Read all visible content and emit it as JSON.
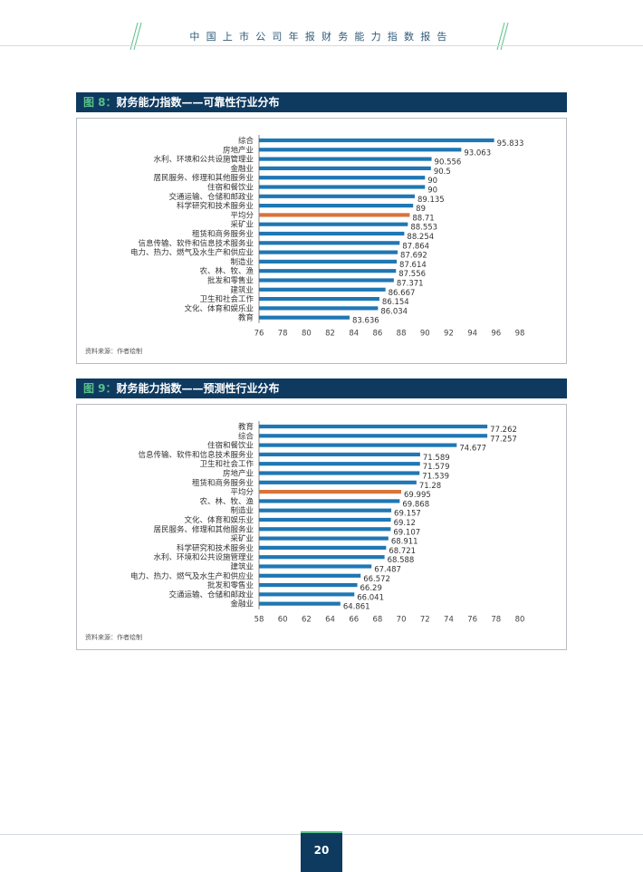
{
  "header": {
    "title": "中国上市公司年报财务能力指数报告"
  },
  "page_number": "20",
  "colors": {
    "bar": "#1f77b4",
    "highlight": "#d9733b",
    "title_bg": "#0e3a60",
    "accent": "#58c18a"
  },
  "figures": [
    {
      "label": "图 8：",
      "title": "财务能力指数——可靠性行业分布",
      "source": "资料来源：作者绘制"
    },
    {
      "label": "图 9：",
      "title": "财务能力指数——预测性行业分布",
      "source": "资料来源：作者绘制"
    }
  ],
  "chart_data": [
    {
      "type": "bar",
      "orientation": "horizontal",
      "title": "财务能力指数——可靠性行业分布",
      "xlim": [
        76,
        98
      ],
      "ticks": [
        76,
        78,
        80,
        82,
        84,
        86,
        88,
        90,
        92,
        94,
        96,
        98
      ],
      "highlight": "平均分",
      "categories": [
        "综合",
        "房地产业",
        "水利、环境和公共设施管理业",
        "金融业",
        "居民服务、修理和其他服务业",
        "住宿和餐饮业",
        "交通运输、仓储和邮政业",
        "科学研究和技术服务业",
        "平均分",
        "采矿业",
        "租赁和商务服务业",
        "信息传输、软件和信息技术服务业",
        "电力、热力、燃气及水生产和供应业",
        "制造业",
        "农、林、牧、渔",
        "批发和零售业",
        "建筑业",
        "卫生和社会工作",
        "文化、体育和娱乐业",
        "教育"
      ],
      "values": [
        95.833,
        93.063,
        90.556,
        90.5,
        90,
        90,
        89.135,
        89,
        88.71,
        88.553,
        88.254,
        87.864,
        87.692,
        87.614,
        87.556,
        87.371,
        86.667,
        86.154,
        86.034,
        83.636
      ],
      "value_labels": [
        "95.833",
        "93.063",
        "90.556",
        "90.5",
        "90",
        "90",
        "89.135",
        "89",
        "88.71",
        "88.553",
        "88.254",
        "87.864",
        "87.692",
        "87.614",
        "87.556",
        "87.371",
        "86.667",
        "86.154",
        "86.034",
        "83.636"
      ]
    },
    {
      "type": "bar",
      "orientation": "horizontal",
      "title": "财务能力指数——预测性行业分布",
      "xlim": [
        58,
        80
      ],
      "ticks": [
        58,
        60,
        62,
        64,
        66,
        68,
        70,
        72,
        74,
        76,
        78,
        80
      ],
      "highlight": "平均分",
      "categories": [
        "教育",
        "综合",
        "住宿和餐饮业",
        "信息传输、软件和信息技术服务业",
        "卫生和社会工作",
        "房地产业",
        "租赁和商务服务业",
        "平均分",
        "农、林、牧、渔",
        "制造业",
        "文化、体育和娱乐业",
        "居民服务、修理和其他服务业",
        "采矿业",
        "科学研究和技术服务业",
        "水利、环境和公共设施管理业",
        "建筑业",
        "电力、热力、燃气及水生产和供应业",
        "批发和零售业",
        "交通运输、仓储和邮政业",
        "金融业"
      ],
      "values": [
        77.262,
        77.257,
        74.677,
        71.589,
        71.579,
        71.539,
        71.28,
        69.995,
        69.868,
        69.157,
        69.12,
        69.107,
        68.911,
        68.721,
        68.588,
        67.487,
        66.572,
        66.29,
        66.041,
        64.861
      ],
      "value_labels": [
        "77.262",
        "77.257",
        "74.677",
        "71.589",
        "71.579",
        "71.539",
        "71.28",
        "69.995",
        "69.868",
        "69.157",
        "69.12",
        "69.107",
        "68.911",
        "68.721",
        "68.588",
        "67.487",
        "66.572",
        "66.29",
        "66.041",
        "64.861"
      ]
    }
  ]
}
